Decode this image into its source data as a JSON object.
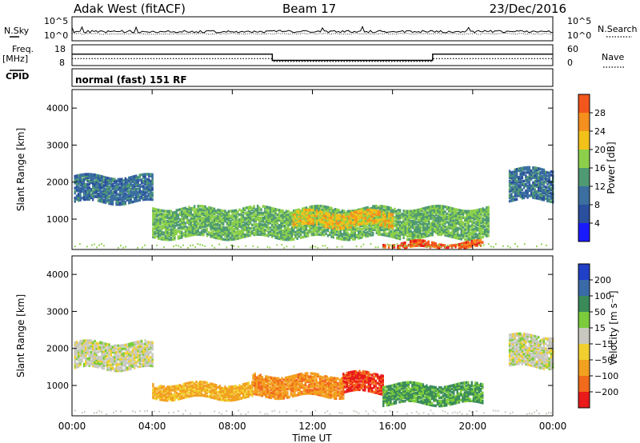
{
  "header": {
    "title": "Adak West (fitACF)",
    "beam": "Beam 17",
    "date": "23/Dec/2016"
  },
  "side_labels": {
    "nsky": "N.Sky",
    "nsearch": "N.Search",
    "freq_top": "Freq.",
    "freq_unit": "[MHz]",
    "nave": "Nave",
    "cpid": "CPID",
    "cpid_value": "normal (fast) 151 RF"
  },
  "noise_axis": {
    "left_ticks": [
      "10^5",
      "10^0"
    ],
    "right_ticks": [
      "10^5",
      "10^0"
    ]
  },
  "freq_axis": {
    "left_ticks": [
      "18",
      "8"
    ],
    "right_ticks": [
      "60",
      "0"
    ]
  },
  "colors": {
    "power_scale": [
      "#1a1aff",
      "#2a4f9e",
      "#3a6fa0",
      "#4f9a72",
      "#8cd04a",
      "#f2c21a",
      "#f5901e",
      "#f2561c",
      "#e81a1a"
    ],
    "velocity_scale": [
      "#2040c8",
      "#3a6aa8",
      "#3a8a5a",
      "#7acc3a",
      "#c8c8c0",
      "#f0d030",
      "#f2a020",
      "#f26a1c",
      "#e81a1a"
    ]
  },
  "chart_data": [
    {
      "type": "line",
      "title": "",
      "series": [
        {
          "name": "N.Sky",
          "approx_level": "10^1.5 (near-constant)"
        },
        {
          "name": "N.Search",
          "approx_level": "10^1 (near-constant)"
        }
      ],
      "x_hours": [
        0,
        24
      ]
    },
    {
      "type": "line",
      "series": [
        {
          "name": "Freq. [MHz]",
          "x": [
            0,
            10,
            10,
            18,
            18,
            24
          ],
          "values": [
            13.5,
            13.5,
            10.5,
            10.5,
            13.5,
            13.5
          ]
        },
        {
          "name": "Nave",
          "x": [
            0,
            10,
            10,
            18,
            18,
            24
          ],
          "values": [
            20,
            20,
            12,
            12,
            20,
            20
          ]
        }
      ],
      "ylim_left": [
        8,
        18
      ],
      "ylim_right": [
        0,
        60
      ]
    },
    {
      "type": "heatmap",
      "ylabel": "Slant Range [km]",
      "yticks": [
        "1000",
        "2000",
        "3000",
        "4000"
      ],
      "ylim": [
        180,
        4500
      ],
      "colorbar_label": "Power [dB]",
      "colorbar_ticks": [
        "4",
        "8",
        "12",
        "16",
        "20",
        "24",
        "28"
      ],
      "regions": [
        {
          "x": [
            0.1,
            4.0
          ],
          "range_km": [
            1450,
            2150
          ],
          "level": 8
        },
        {
          "x": [
            4.0,
            20.8
          ],
          "range_km": [
            500,
            1300
          ],
          "level": 14
        },
        {
          "x": [
            11.0,
            16.0
          ],
          "range_km": [
            800,
            1200
          ],
          "level": 20
        },
        {
          "x": [
            15.5,
            20.5
          ],
          "range_km": [
            200,
            350
          ],
          "level": 28
        },
        {
          "x": [
            21.8,
            24.0
          ],
          "range_km": [
            1500,
            2350
          ],
          "level": 8
        }
      ]
    },
    {
      "type": "heatmap",
      "ylabel": "Slant Range [km]",
      "yticks": [
        "1000",
        "2000",
        "3000",
        "4000"
      ],
      "ylim": [
        180,
        4500
      ],
      "colorbar_label": "Velocity [m s⁻¹]",
      "colorbar_ticks": [
        "200",
        "100",
        "50",
        "15",
        "−15",
        "−50",
        "−100",
        "−200"
      ],
      "regions": [
        {
          "x": [
            0.1,
            4.0
          ],
          "range_km": [
            1450,
            2150
          ],
          "velocity": 0
        },
        {
          "x": [
            4.0,
            9.0
          ],
          "range_km": [
            650,
            1050
          ],
          "velocity": -60
        },
        {
          "x": [
            9.0,
            13.5
          ],
          "range_km": [
            700,
            1250
          ],
          "velocity": -90
        },
        {
          "x": [
            13.5,
            15.5
          ],
          "range_km": [
            800,
            1300
          ],
          "velocity": -200
        },
        {
          "x": [
            15.5,
            20.5
          ],
          "range_km": [
            500,
            1000
          ],
          "velocity": 40
        },
        {
          "x": [
            21.8,
            24.0
          ],
          "range_km": [
            1500,
            2350
          ],
          "velocity": 0
        }
      ]
    }
  ],
  "time_axis": {
    "xlabel": "Time UT",
    "ticks": [
      "00:00",
      "04:00",
      "08:00",
      "12:00",
      "16:00",
      "20:00",
      "00:00"
    ]
  }
}
